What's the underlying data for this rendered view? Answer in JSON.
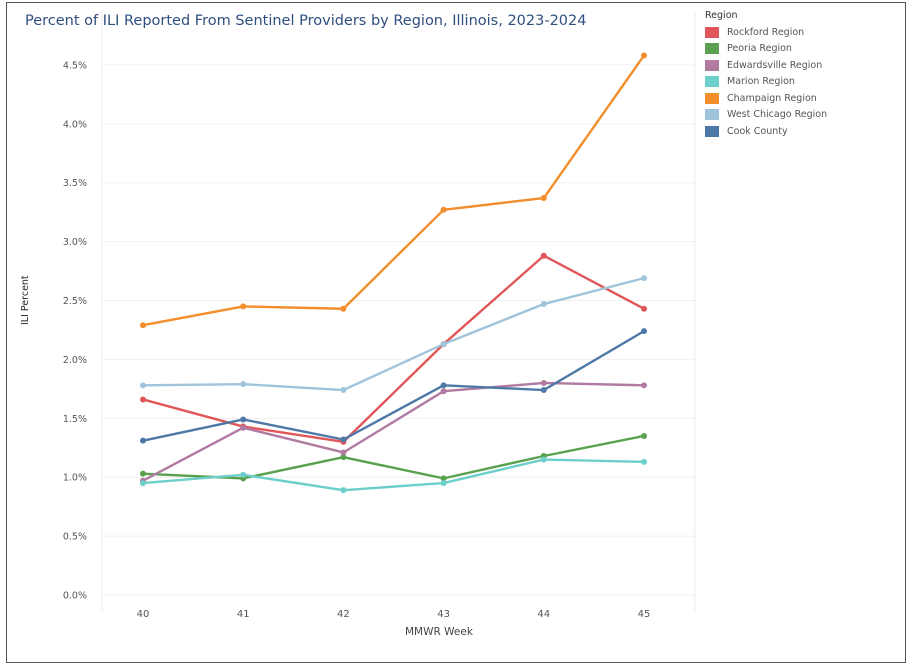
{
  "chart_data": {
    "type": "line",
    "title": "Percent of ILI Reported From Sentinel Providers by Region, Illinois, 2023-2024",
    "xlabel": "MMWR Week",
    "ylabel": "ILI Percent",
    "categories": [
      "40",
      "41",
      "42",
      "43",
      "44",
      "45"
    ],
    "ylim": [
      0,
      4.7
    ],
    "yticks": [
      "0.0%",
      "0.5%",
      "1.0%",
      "1.5%",
      "2.0%",
      "2.5%",
      "3.0%",
      "3.5%",
      "4.0%",
      "4.5%"
    ],
    "ytick_values": [
      0,
      0.5,
      1.0,
      1.5,
      2.0,
      2.5,
      3.0,
      3.5,
      4.0,
      4.5
    ],
    "legend_title": "Region",
    "legend_position": "top-right",
    "grid": true,
    "series": [
      {
        "name": "Rockford Region",
        "color": "#e15759",
        "values": [
          1.66,
          1.43,
          1.3,
          2.13,
          2.88,
          2.43
        ]
      },
      {
        "name": "Peoria Region",
        "color": "#59a14f",
        "values": [
          1.03,
          0.99,
          1.17,
          0.99,
          1.18,
          1.35
        ]
      },
      {
        "name": "Edwardsville Region",
        "color": "#b07aa1",
        "values": [
          0.97,
          1.42,
          1.21,
          1.73,
          1.8,
          1.78
        ]
      },
      {
        "name": "Marion Region",
        "color": "#6ccfc9",
        "values": [
          0.95,
          1.02,
          0.89,
          0.95,
          1.15,
          1.13
        ]
      },
      {
        "name": "Champaign Region",
        "color": "#f28e2b",
        "values": [
          2.29,
          2.45,
          2.43,
          3.27,
          3.37,
          4.58
        ]
      },
      {
        "name": "West Chicago Region",
        "color": "#a0c4dc",
        "values": [
          1.78,
          1.79,
          1.74,
          2.13,
          2.47,
          2.69
        ]
      },
      {
        "name": "Cook County",
        "color": "#4e79a7",
        "values": [
          1.31,
          1.49,
          1.32,
          1.78,
          1.74,
          2.24
        ]
      }
    ]
  }
}
